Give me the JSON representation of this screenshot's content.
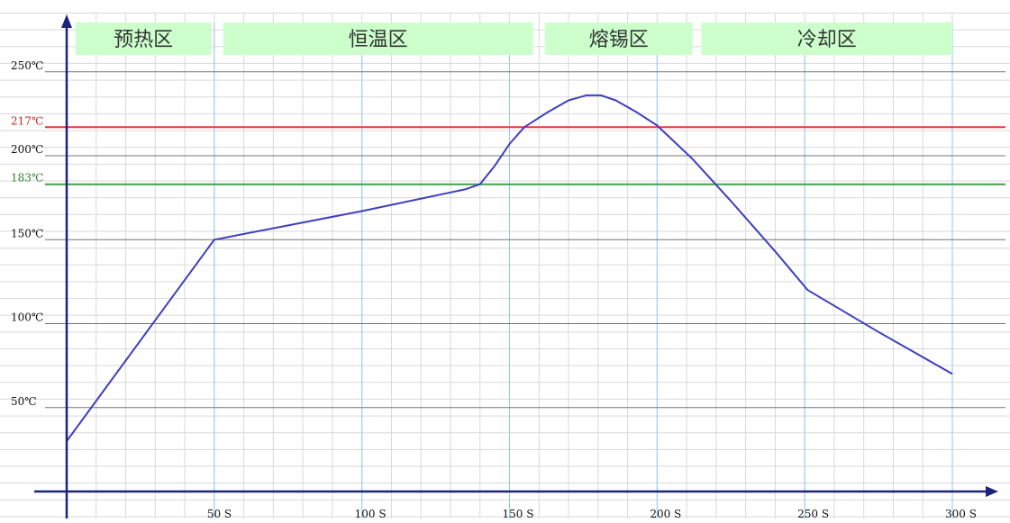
{
  "chart_data": {
    "type": "line",
    "title": "",
    "xlabel": "",
    "ylabel": "",
    "xlim": [
      0,
      300
    ],
    "ylim": [
      0,
      250
    ],
    "grid": true,
    "x_ticks": [
      {
        "value": 50,
        "label": "50 S"
      },
      {
        "value": 100,
        "label": "100 S"
      },
      {
        "value": 150,
        "label": "150 S"
      },
      {
        "value": 200,
        "label": "200 S"
      },
      {
        "value": 250,
        "label": "250 S"
      },
      {
        "value": 300,
        "label": "300 S"
      }
    ],
    "y_ticks": [
      {
        "value": 50,
        "label": "50℃",
        "color": "#111111"
      },
      {
        "value": 100,
        "label": "100℃",
        "color": "#111111"
      },
      {
        "value": 150,
        "label": "150℃",
        "color": "#111111"
      },
      {
        "value": 183,
        "label": "183℃",
        "color": "#2e7d32"
      },
      {
        "value": 200,
        "label": "200℃",
        "color": "#111111"
      },
      {
        "value": 217,
        "label": "217℃",
        "color": "#c62828"
      },
      {
        "value": 250,
        "label": "250℃",
        "color": "#111111"
      }
    ],
    "reference_lines": [
      {
        "y": 183,
        "color": "#43a047"
      },
      {
        "y": 217,
        "color": "#e53935"
      }
    ],
    "zones": [
      {
        "label": "预热区",
        "x_start": 3,
        "x_end": 49
      },
      {
        "label": "恒温区",
        "x_start": 53,
        "x_end": 158
      },
      {
        "label": "熔锡区",
        "x_start": 162,
        "x_end": 212
      },
      {
        "label": "冷却区",
        "x_start": 215,
        "x_end": 300
      }
    ],
    "series": [
      {
        "color": "#3f3fbf",
        "points": [
          [
            0,
            30
          ],
          [
            50,
            150
          ],
          [
            100,
            167
          ],
          [
            135,
            180
          ],
          [
            140,
            183
          ],
          [
            145,
            194
          ],
          [
            150,
            207
          ],
          [
            155,
            217
          ],
          [
            163,
            226
          ],
          [
            170,
            233
          ],
          [
            176,
            236
          ],
          [
            181,
            236
          ],
          [
            186,
            233
          ],
          [
            193,
            226
          ],
          [
            200,
            218
          ],
          [
            212,
            198
          ],
          [
            225,
            173
          ],
          [
            240,
            143
          ],
          [
            251,
            120
          ],
          [
            275,
            95
          ],
          [
            300,
            70
          ]
        ]
      }
    ]
  }
}
